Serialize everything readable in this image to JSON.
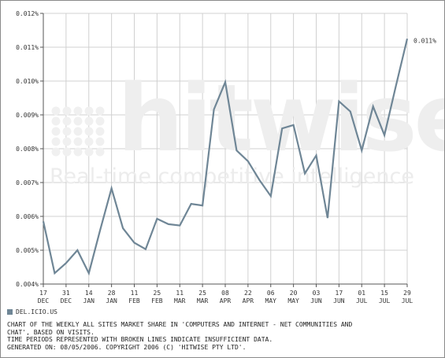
{
  "watermark": {
    "brand": "hitwise",
    "tagline": "Real-time competitive intelligence"
  },
  "chart_data": {
    "type": "line",
    "ylim": [
      0.004,
      0.012
    ],
    "y_ticks": [
      "0.004%",
      "0.005%",
      "0.006%",
      "0.007%",
      "0.008%",
      "0.009%",
      "0.010%",
      "0.011%",
      "0.012%"
    ],
    "x_ticks": [
      {
        "day": "17",
        "month": "DEC"
      },
      {
        "day": "31",
        "month": "DEC"
      },
      {
        "day": "14",
        "month": "JAN"
      },
      {
        "day": "28",
        "month": "JAN"
      },
      {
        "day": "11",
        "month": "FEB"
      },
      {
        "day": "25",
        "month": "FEB"
      },
      {
        "day": "11",
        "month": "MAR"
      },
      {
        "day": "25",
        "month": "MAR"
      },
      {
        "day": "08",
        "month": "APR"
      },
      {
        "day": "22",
        "month": "APR"
      },
      {
        "day": "06",
        "month": "MAY"
      },
      {
        "day": "20",
        "month": "MAY"
      },
      {
        "day": "03",
        "month": "JUN"
      },
      {
        "day": "17",
        "month": "JUN"
      },
      {
        "day": "01",
        "month": "JUL"
      },
      {
        "day": "15",
        "month": "JUL"
      },
      {
        "day": "29",
        "month": "JUL"
      }
    ],
    "series": [
      {
        "name": "DEL.ICIO.US",
        "color": "#6f8696",
        "values": [
          0.00585,
          0.00432,
          0.00462,
          0.005,
          0.00432,
          0.0056,
          0.00683,
          0.00565,
          0.00522,
          0.00503,
          0.00593,
          0.00577,
          0.00573,
          0.00637,
          0.00632,
          0.00916,
          0.00997,
          0.00795,
          0.00763,
          0.00708,
          0.0066,
          0.0086,
          0.0087,
          0.00727,
          0.0078,
          0.00595,
          0.0094,
          0.0091,
          0.00795,
          0.00925,
          0.0084,
          0.00985,
          0.01125
        ],
        "end_label": "0.011%"
      }
    ]
  },
  "legend": {
    "label": "DEL.ICIO.US"
  },
  "notes": [
    "CHART OF THE WEEKLY ALL SITES MARKET SHARE IN 'COMPUTERS AND INTERNET - NET COMMUNITIES AND",
    "CHAT', BASED ON VISITS.",
    "TIME PERIODS REPRESENTED WITH BROKEN LINES INDICATE INSUFFICIENT DATA.",
    "GENERATED ON: 08/05/2006. COPYRIGHT 2006 (C) 'HITWISE PTY LTD'."
  ]
}
